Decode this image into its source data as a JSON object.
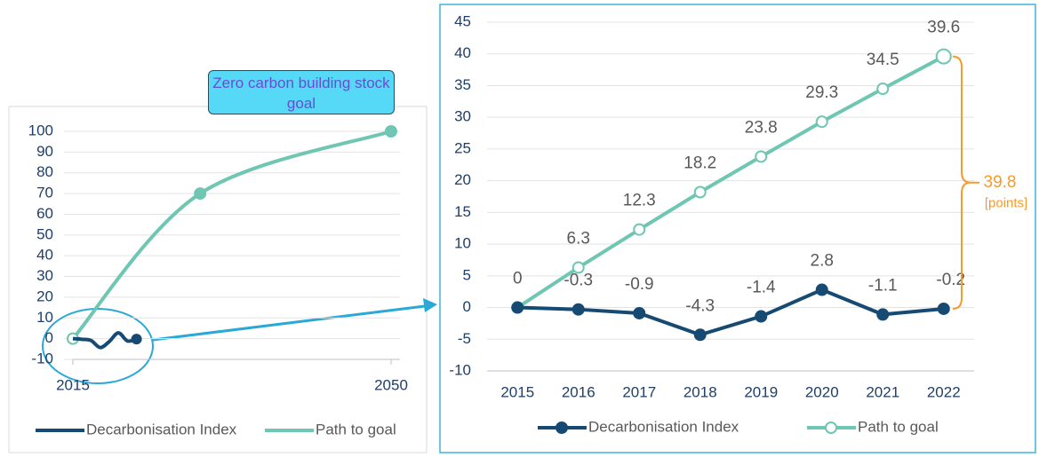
{
  "chart_data": [
    {
      "type": "line",
      "xlim": [
        2015,
        2050
      ],
      "xticks": [
        2015,
        2050
      ],
      "ylim": [
        -10,
        100
      ],
      "yticks": [
        -10,
        0,
        10,
        20,
        30,
        40,
        50,
        60,
        70,
        80,
        90,
        100
      ],
      "grid": true,
      "legend": "bottom",
      "annotation": "Zero carbon building stock goal",
      "series": [
        {
          "name": "Decarbonisation Index",
          "color": "#164a73",
          "x": [
            2015,
            2016,
            2017,
            2018,
            2019,
            2020,
            2021,
            2022
          ],
          "values": [
            0,
            -0.3,
            -0.9,
            -4.3,
            -1.4,
            2.8,
            -1.1,
            -0.2
          ]
        },
        {
          "name": "Path to goal",
          "color": "#6fc6b2",
          "x": [
            2015,
            2029,
            2050
          ],
          "values": [
            0,
            70,
            100
          ]
        }
      ]
    },
    {
      "type": "line",
      "categories": [
        "2015",
        "2016",
        "2017",
        "2018",
        "2019",
        "2020",
        "2021",
        "2022"
      ],
      "ylim": [
        -10,
        45
      ],
      "yticks": [
        -10,
        -5,
        0,
        5,
        10,
        15,
        20,
        25,
        30,
        35,
        40,
        45
      ],
      "grid": true,
      "legend": "bottom",
      "annotation": {
        "value": 39.8,
        "label": "[points]"
      },
      "series": [
        {
          "name": "Decarbonisation Index",
          "color": "#164a73",
          "values": [
            0,
            -0.3,
            -0.9,
            -4.3,
            -1.4,
            2.8,
            -1.1,
            -0.2
          ]
        },
        {
          "name": "Path to goal",
          "color": "#6fc6b2",
          "values": [
            0,
            6.3,
            12.3,
            18.2,
            23.8,
            29.3,
            34.5,
            39.6
          ]
        }
      ]
    }
  ]
}
